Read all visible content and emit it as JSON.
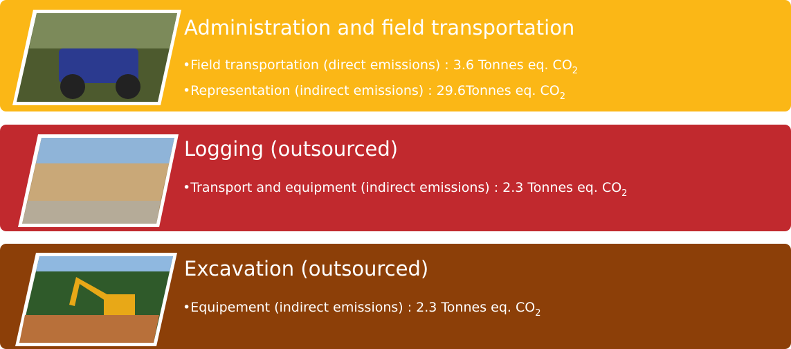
{
  "sections": [
    {
      "title": "Administration and field transportation",
      "items": [
        {
          "text": "•Field transportation (direct emissions) : 3.6 Tonnes eq. CO",
          "sub": "2"
        },
        {
          "text": "•Representation (indirect emissions) : 29.6Tonnes eq. CO",
          "sub": "2"
        }
      ]
    },
    {
      "title": "Logging (outsourced)",
      "items": [
        {
          "text": "•Transport and equipment (indirect emissions) : 2.3 Tonnes eq. CO",
          "sub": "2"
        }
      ]
    },
    {
      "title": "Excavation (outsourced)",
      "items": [
        {
          "text": "•Equipement (indirect emissions) : 2.3 Tonnes eq. CO",
          "sub": "2"
        }
      ]
    }
  ]
}
